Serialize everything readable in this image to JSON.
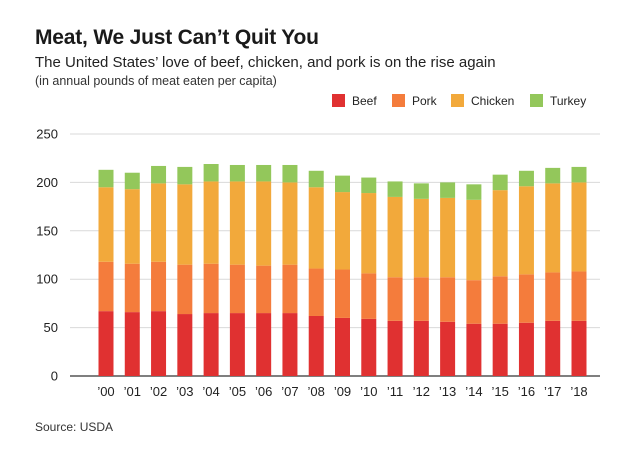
{
  "chart_data": {
    "type": "bar",
    "stacked": true,
    "title": "Meat, We Just Can’t Quit You",
    "subtitle": "The United States’ love of beef, chicken, and pork is on the rise again",
    "note": "(in annual pounds of meat eaten per capita)",
    "source": "Source: USDA",
    "categories": [
      "’00",
      "’01",
      "’02",
      "’03",
      "’04",
      "’05",
      "’06",
      "’07",
      "’08",
      "’09",
      "’10",
      "’11",
      "’12",
      "’13",
      "’14",
      "’15",
      "’16",
      "’17",
      "’18"
    ],
    "yticks": [
      0,
      50,
      100,
      150,
      200,
      250
    ],
    "ylim": [
      0,
      250
    ],
    "grid": true,
    "legend_position": "top-right",
    "series": [
      {
        "name": "Beef",
        "color": "#e03131",
        "values": [
          67,
          66,
          67,
          64,
          65,
          65,
          65,
          65,
          62,
          60,
          59,
          57,
          57,
          56,
          54,
          54,
          55,
          57,
          57
        ]
      },
      {
        "name": "Pork",
        "color": "#f47c3c",
        "values": [
          51,
          50,
          51,
          51,
          51,
          50,
          49,
          50,
          49,
          50,
          47,
          45,
          45,
          46,
          45,
          49,
          50,
          50,
          51
        ]
      },
      {
        "name": "Chicken",
        "color": "#f2a93b",
        "values": [
          77,
          77,
          81,
          83,
          85,
          86,
          87,
          85,
          84,
          80,
          83,
          83,
          81,
          82,
          83,
          89,
          91,
          92,
          92
        ]
      },
      {
        "name": "Turkey",
        "color": "#93c75b",
        "values": [
          18,
          17,
          18,
          18,
          18,
          17,
          17,
          18,
          17,
          17,
          16,
          16,
          16,
          16,
          16,
          16,
          16,
          16,
          16
        ]
      }
    ]
  }
}
